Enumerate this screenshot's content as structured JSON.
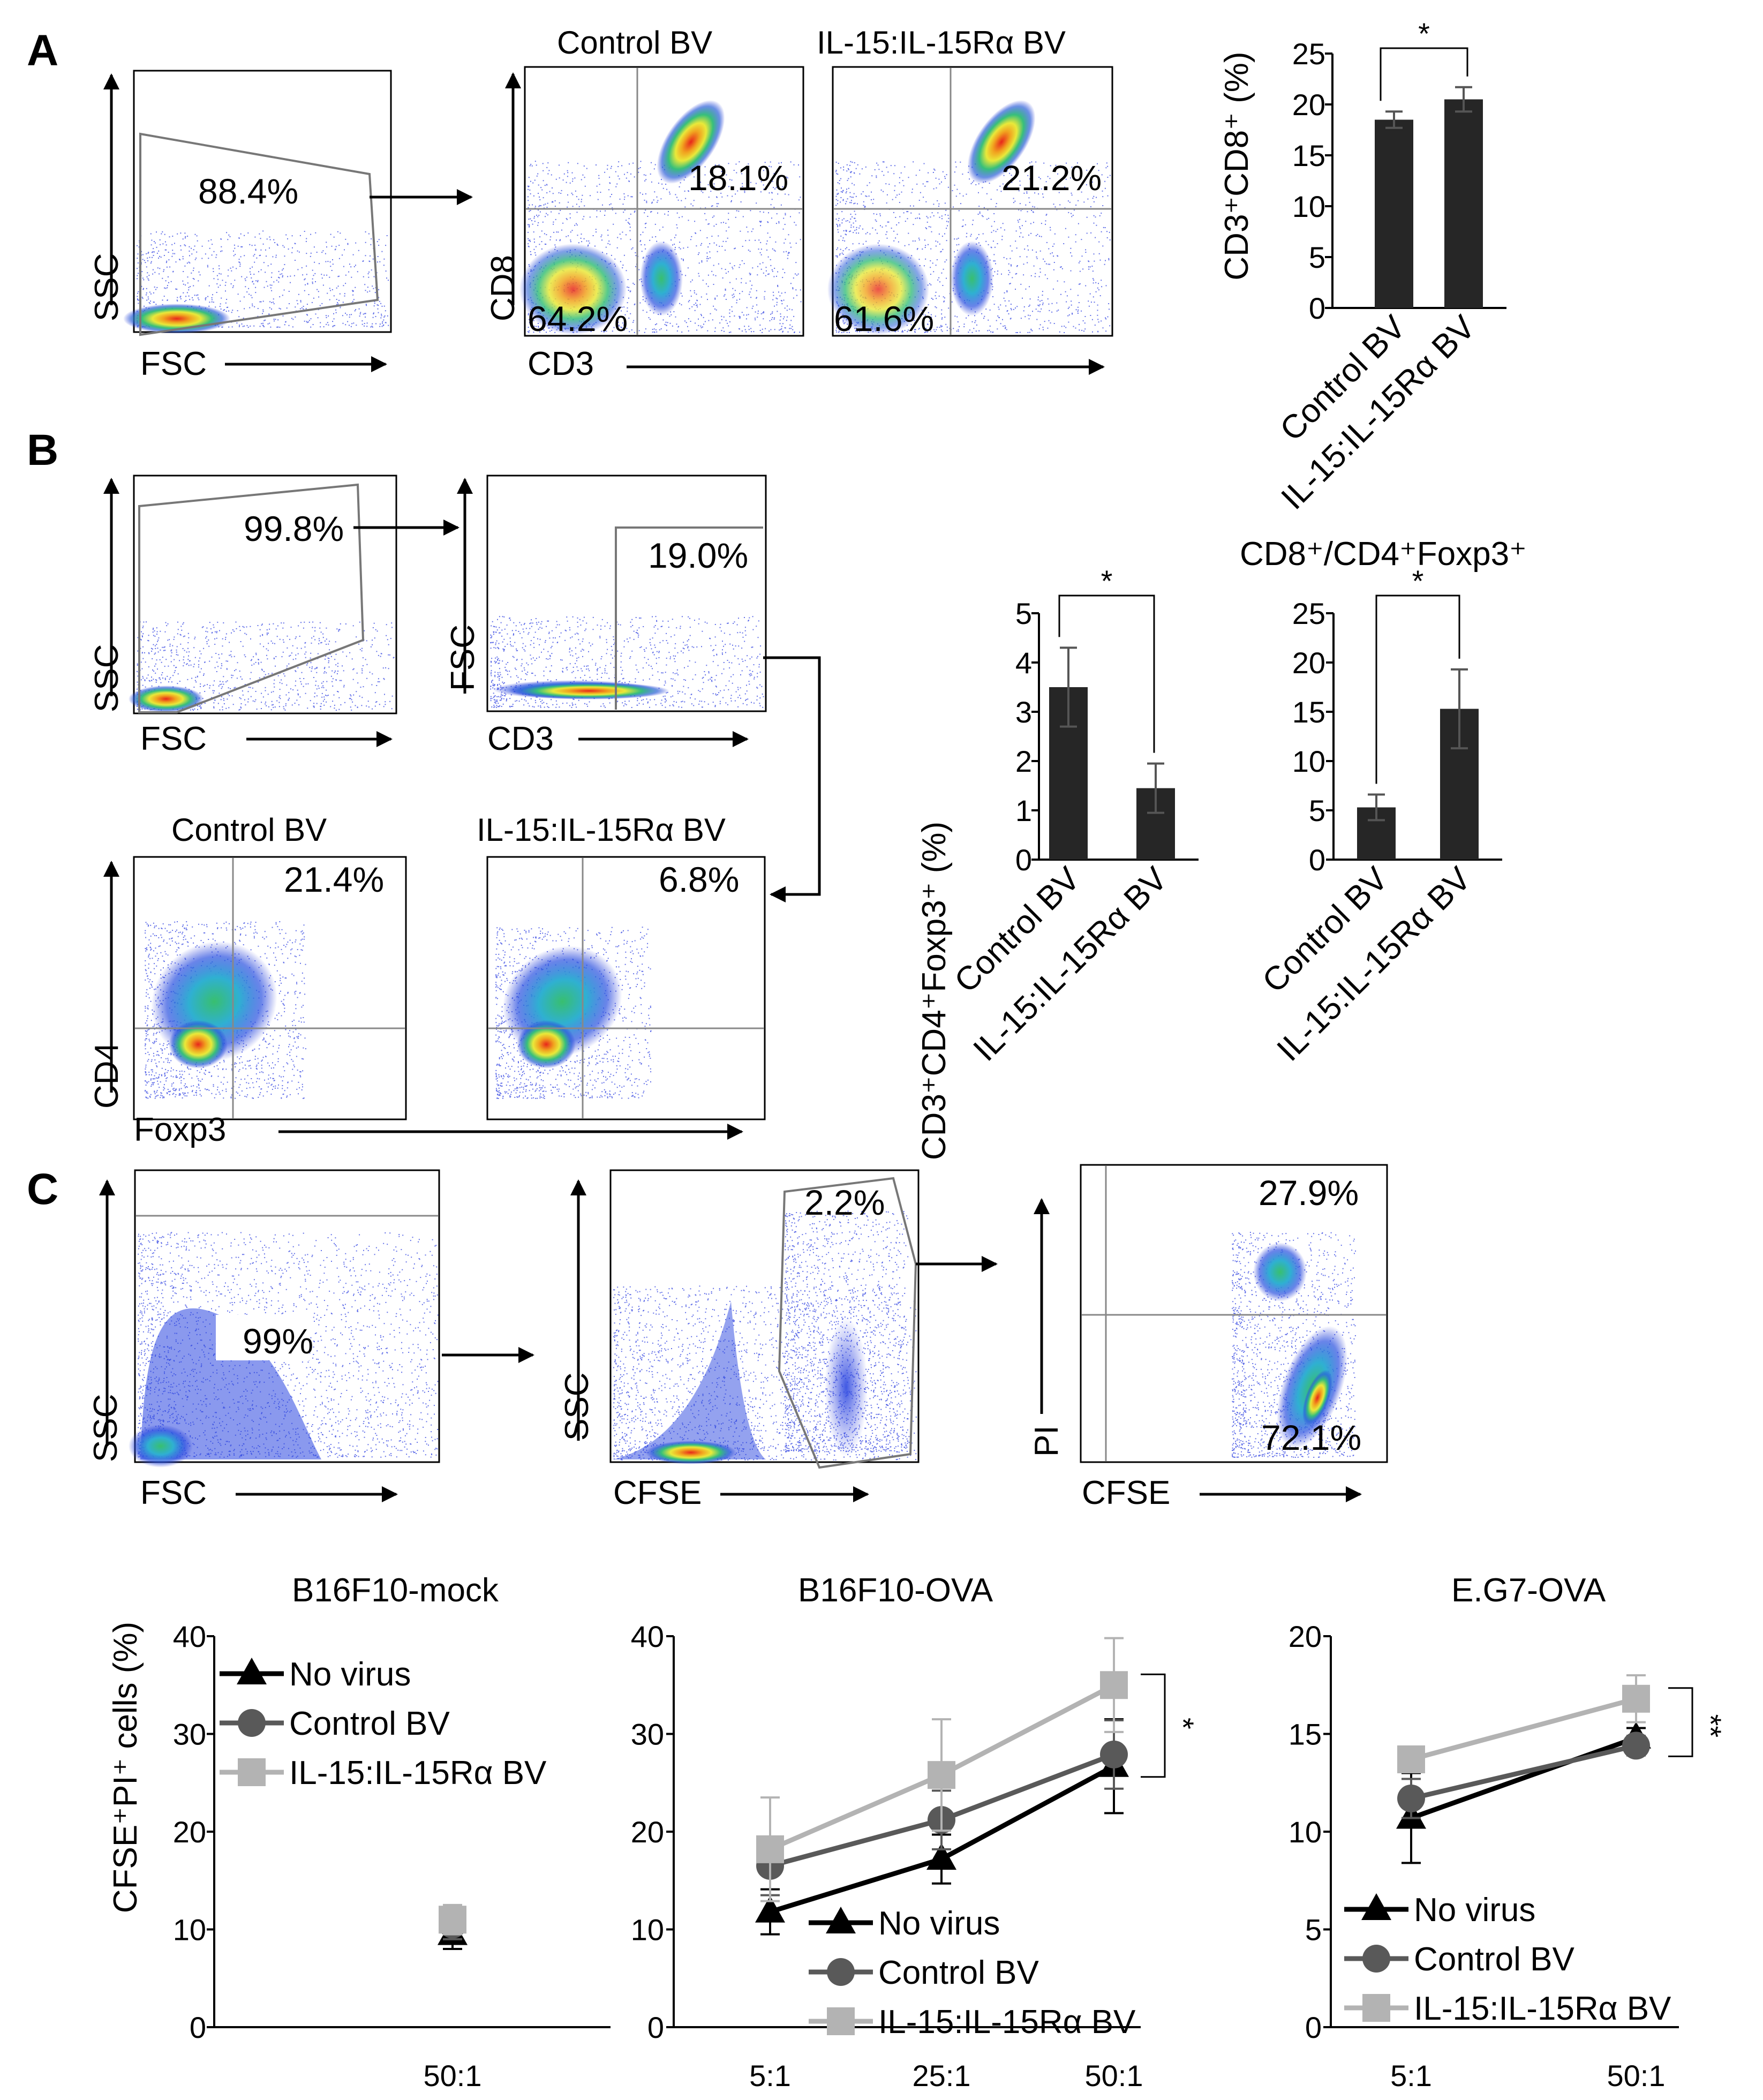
{
  "panel_labels": [
    "A",
    "B",
    "C"
  ],
  "flow": {
    "a_gate": {
      "xlabel": "FSC",
      "ylabel": "SSC",
      "pct": "88.4%"
    },
    "a_control": {
      "title": "Control BV",
      "ylabel": "CD8",
      "ur": "18.1%",
      "ll": "64.2%"
    },
    "a_il15": {
      "title": "IL-15:IL-15Rα BV",
      "ur": "21.2%",
      "ll": "61.6%"
    },
    "a_shared_xlabel": "CD3",
    "b_gate1": {
      "xlabel": "FSC",
      "ylabel": "SSC",
      "pct": "99.8%"
    },
    "b_gate2": {
      "xlabel": "CD3",
      "ylabel": "FSC",
      "pct": "19.0%"
    },
    "b_control": {
      "title": "Control BV",
      "ylabel": "CD4",
      "ur": "21.4%"
    },
    "b_il15": {
      "title": "IL-15:IL-15Rα BV",
      "ur": "6.8%"
    },
    "b_shared_xlabel": "Foxp3",
    "c_gate1": {
      "xlabel": "FSC",
      "ylabel": "SSC",
      "pct": "99%"
    },
    "c_gate2": {
      "xlabel": "CFSE",
      "ylabel": "SSC",
      "pct": "2.2%"
    },
    "c_gate3": {
      "xlabel": "CFSE",
      "ylabel": "PI",
      "upper": "27.9%",
      "lower": "72.1%"
    }
  },
  "bar_colors": {
    "bar": "#262626",
    "err": "#555555"
  },
  "line_colors": {
    "No virus": "#000000",
    "Control BV": "#595959",
    "IL-15:IL-15Rα BV": "#b3b3b3"
  },
  "chart_data": [
    {
      "id": "a_bar",
      "type": "bar",
      "categories": [
        "Control BV",
        "IL-15:IL-15Rα BV"
      ],
      "values": [
        18.5,
        20.5
      ],
      "errors": [
        0.8,
        1.2
      ],
      "ylabel": "CD3⁺CD8⁺ (%)",
      "ylim": [
        0,
        25
      ],
      "yticks": [
        0,
        5,
        10,
        15,
        20,
        25
      ],
      "significance": "*",
      "title": ""
    },
    {
      "id": "b_bar1",
      "type": "bar",
      "categories": [
        "Control BV",
        "IL-15:IL-15Rα BV"
      ],
      "values": [
        3.5,
        1.45
      ],
      "errors": [
        0.8,
        0.5
      ],
      "ylabel": "CD3⁺CD4⁺Foxp3⁺ (%)",
      "ylim": [
        0,
        5
      ],
      "yticks": [
        0,
        1,
        2,
        3,
        4,
        5
      ],
      "significance": "*",
      "title": ""
    },
    {
      "id": "b_bar2",
      "type": "bar",
      "categories": [
        "Control BV",
        "IL-15:IL-15Rα BV"
      ],
      "values": [
        5.3,
        15.3
      ],
      "errors": [
        1.3,
        4.0
      ],
      "ylabel": "",
      "ylim": [
        0,
        25
      ],
      "yticks": [
        0,
        5,
        10,
        15,
        20,
        25
      ],
      "significance": "*",
      "title": "CD8⁺/CD4⁺Foxp3⁺"
    },
    {
      "id": "c_mock",
      "type": "line",
      "title": "B16F10-mock",
      "ylabel": "CFSE⁺PI⁺ cells (%)",
      "ylim": [
        0,
        40
      ],
      "yticks": [
        0,
        10,
        20,
        30,
        40
      ],
      "categories": [
        "50:1"
      ],
      "series": [
        {
          "name": "No virus",
          "marker": "triangle",
          "values": [
            9.5
          ],
          "errors": [
            1.5
          ]
        },
        {
          "name": "Control BV",
          "marker": "circle",
          "values": [
            10.5
          ],
          "errors": [
            1.5
          ]
        },
        {
          "name": "IL-15:IL-15Rα BV",
          "marker": "square",
          "values": [
            11.0
          ],
          "errors": [
            1.5
          ]
        }
      ],
      "legend": "top-left",
      "significance": ""
    },
    {
      "id": "c_ova",
      "type": "line",
      "title": "B16F10-OVA",
      "ylabel": "",
      "ylim": [
        0,
        40
      ],
      "yticks": [
        0,
        10,
        20,
        30,
        40
      ],
      "categories": [
        "5:1",
        "25:1",
        "50:1"
      ],
      "series": [
        {
          "name": "No virus",
          "marker": "triangle",
          "values": [
            11.8,
            17.2,
            26.7
          ],
          "errors": [
            2.3,
            2.5,
            4.8
          ]
        },
        {
          "name": "Control BV",
          "marker": "circle",
          "values": [
            16.5,
            21.2,
            27.9
          ],
          "errors": [
            3.0,
            3.0,
            3.5
          ]
        },
        {
          "name": "IL-15:IL-15Rα BV",
          "marker": "square",
          "values": [
            18.2,
            25.8,
            35.0
          ],
          "errors": [
            5.3,
            5.7,
            4.8
          ]
        }
      ],
      "legend": "bottom",
      "significance": "*"
    },
    {
      "id": "c_eg7",
      "type": "line",
      "title": "E.G7-OVA",
      "ylabel": "",
      "ylim": [
        0,
        20
      ],
      "yticks": [
        0,
        5,
        10,
        15,
        20
      ],
      "categories": [
        "5:1",
        "50:1"
      ],
      "series": [
        {
          "name": "No virus",
          "marker": "triangle",
          "values": [
            10.7,
            14.8
          ],
          "errors": [
            2.3,
            0.5
          ]
        },
        {
          "name": "Control BV",
          "marker": "circle",
          "values": [
            11.7,
            14.4
          ],
          "errors": [
            1.0,
            0.5
          ]
        },
        {
          "name": "IL-15:IL-15Rα BV",
          "marker": "square",
          "values": [
            13.7,
            16.8
          ],
          "errors": [
            0.5,
            1.2
          ]
        }
      ],
      "legend": "bottom",
      "significance": "**"
    }
  ]
}
